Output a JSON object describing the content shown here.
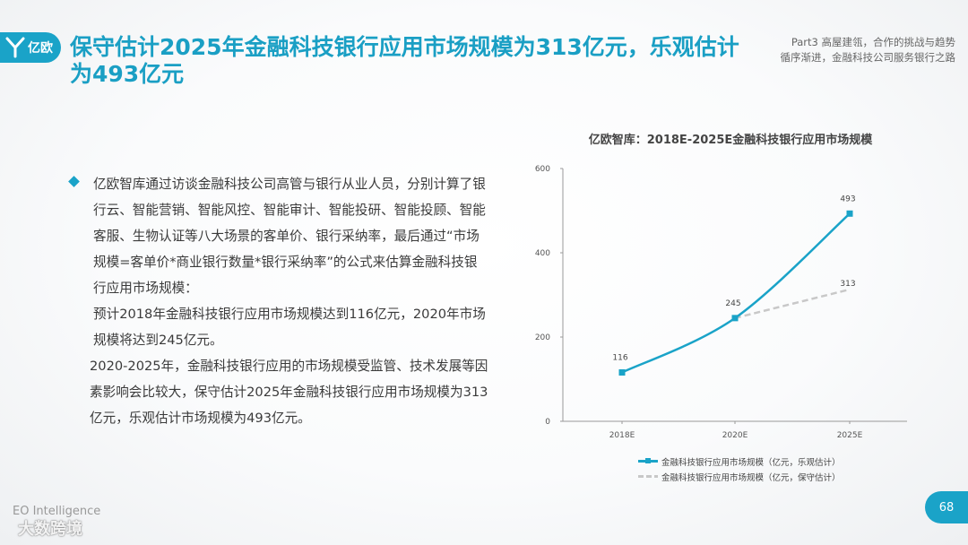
{
  "header": {
    "logo_text": "亿欧",
    "title": "保守估计2025年金融科技银行应用市场规模为313亿元，乐观估计为493亿元",
    "part_line1": "Part3 高屋建瓴，合作的挑战与趋势",
    "part_line2": "循序渐进，金融科技公司服务银行之路"
  },
  "body": {
    "paragraphs": [
      "亿欧智库通过访谈金融科技公司高管与银行从业人员，分别计算了银行云、智能营销、智能风控、智能审计、智能投研、智能投顾、智能客服、生物认证等八大场景的客单价、银行采纳率，最后通过“市场规模=客单价*商业银行数量*银行采纳率”的公式来估算金融科技银行应用市场规模：",
      "预计2018年金融科技银行应用市场规模达到116亿元，2020年市场规模将达到245亿元。",
      "2020-2025年，金融科技银行应用的市场规模受监管、技术发展等因素影响会比较大，保守估计2025年金融科技银行应用市场规模为313亿元，乐观估计市场规模为493亿元。"
    ]
  },
  "chart_data": {
    "type": "line",
    "title": "亿欧智库：2018E-2025E金融科技银行应用市场规模",
    "categories": [
      "2018E",
      "2020E",
      "2025E"
    ],
    "ylim": [
      0,
      600
    ],
    "yticks": [
      0,
      200,
      400,
      600
    ],
    "grid": false,
    "legend_position": "bottom",
    "series": [
      {
        "name": "金融科技银行应用市场规模（亿元，乐观估计）",
        "values": [
          116,
          245,
          493
        ],
        "color": "#1aa3c8",
        "style": "solid-marker"
      },
      {
        "name": "金融科技银行应用市场规模（亿元，保守估计）",
        "values": [
          null,
          245,
          313
        ],
        "color": "#c8c8c8",
        "style": "dashed"
      }
    ],
    "data_labels": [
      "116",
      "245",
      "493",
      "313"
    ]
  },
  "footer": {
    "source": "EO Intelligence",
    "watermark": "大数跨境",
    "page_number": "68"
  }
}
